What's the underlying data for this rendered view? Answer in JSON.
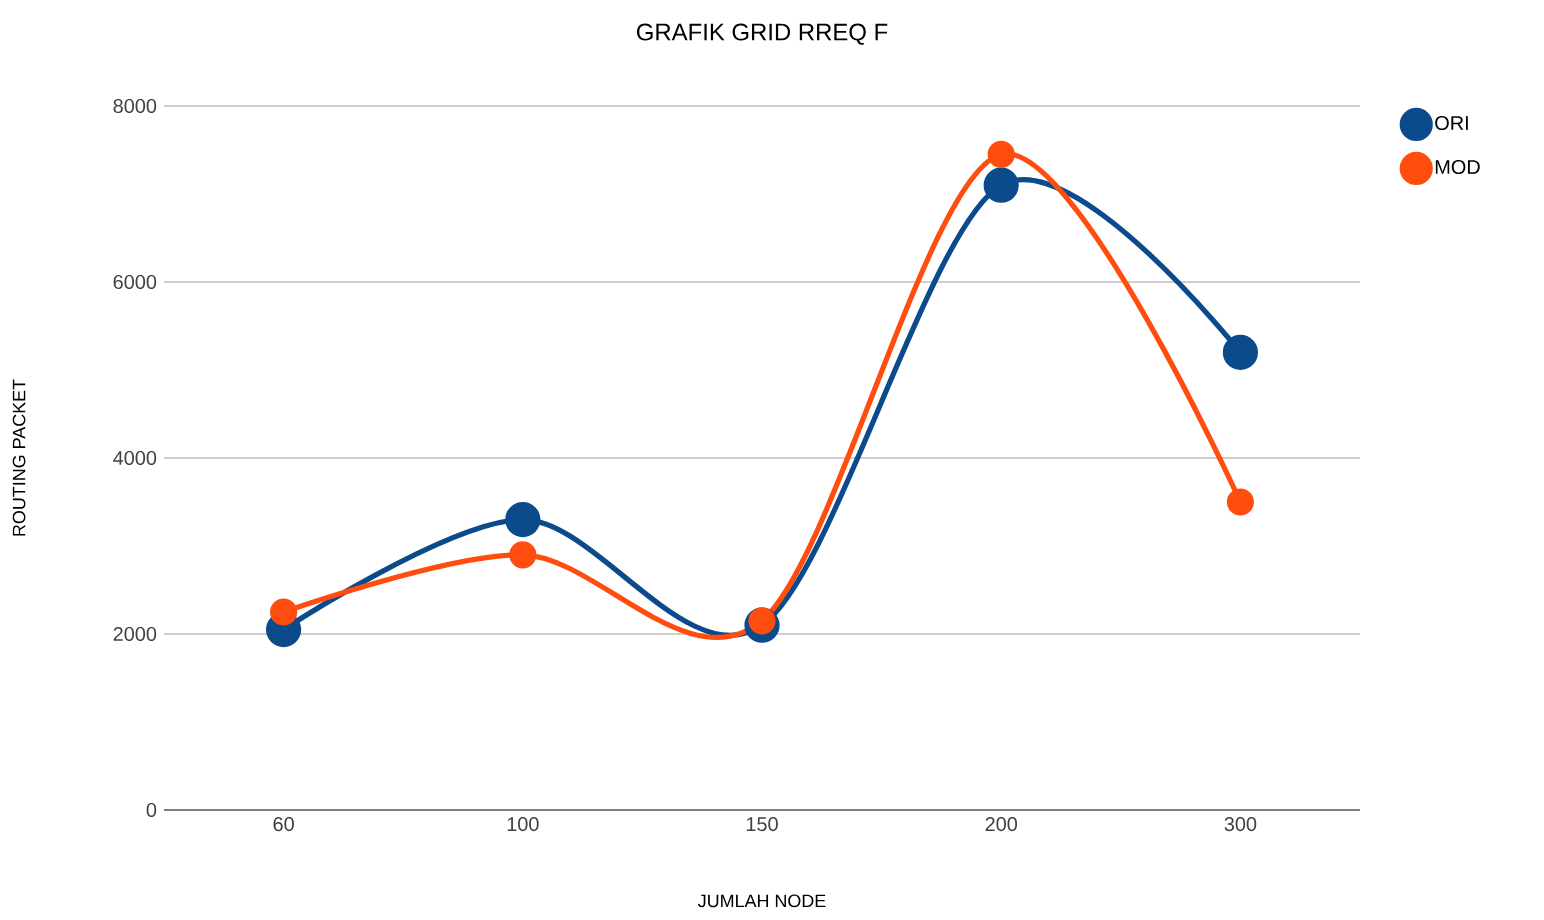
{
  "chart_data": {
    "type": "line",
    "title": "GRAFIK GRID RREQ F",
    "xlabel": "JUMLAH NODE",
    "ylabel": "ROUTING PACKET",
    "categories": [
      "60",
      "100",
      "150",
      "200",
      "300"
    ],
    "series": [
      {
        "name": "ORI",
        "color": "#0b4a8b",
        "values": [
          2050,
          3300,
          2100,
          7100,
          5200
        ]
      },
      {
        "name": "MOD",
        "color": "#ff4d0f",
        "values": [
          2250,
          2900,
          2150,
          7450,
          3500
        ]
      }
    ],
    "ylim": [
      0,
      8000
    ],
    "yticks": [
      0,
      2000,
      4000,
      6000,
      8000
    ],
    "grid": "y",
    "legend": "top right",
    "marker": "circle",
    "line_style": "solid"
  }
}
